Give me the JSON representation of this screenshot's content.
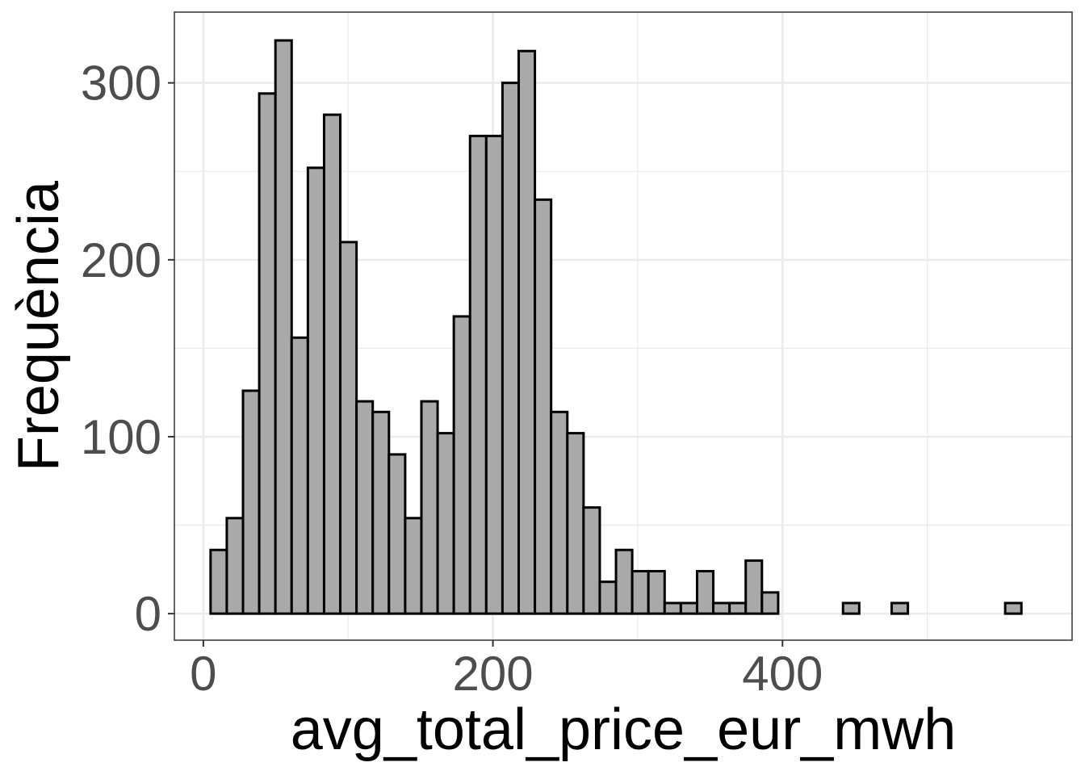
{
  "chart_data": {
    "type": "bar",
    "subtype": "histogram",
    "title": "",
    "xlabel": "avg_total_price_eur_mwh",
    "ylabel": "Frequència",
    "xlim": [
      -20,
      600
    ],
    "ylim": [
      -15,
      340
    ],
    "x_ticks": [
      0,
      200,
      400
    ],
    "y_ticks": [
      0,
      100,
      200,
      300
    ],
    "bin_width": 11.2,
    "bin_start": 5,
    "values": [
      36,
      54,
      126,
      294,
      324,
      156,
      252,
      282,
      210,
      120,
      114,
      90,
      54,
      120,
      102,
      168,
      270,
      270,
      300,
      318,
      234,
      114,
      102,
      60,
      18,
      36,
      24,
      24,
      6,
      6,
      24,
      6,
      6,
      30,
      12,
      0,
      0,
      0,
      0,
      6,
      0,
      0,
      6,
      0,
      0,
      0,
      0,
      0,
      0,
      6
    ],
    "grid": true,
    "theme": "bw",
    "colors": {
      "bar_fill": "#a9a9a9",
      "bar_stroke": "#000000",
      "grid": "#ebebeb",
      "tick_text": "#4d4d4d"
    }
  }
}
